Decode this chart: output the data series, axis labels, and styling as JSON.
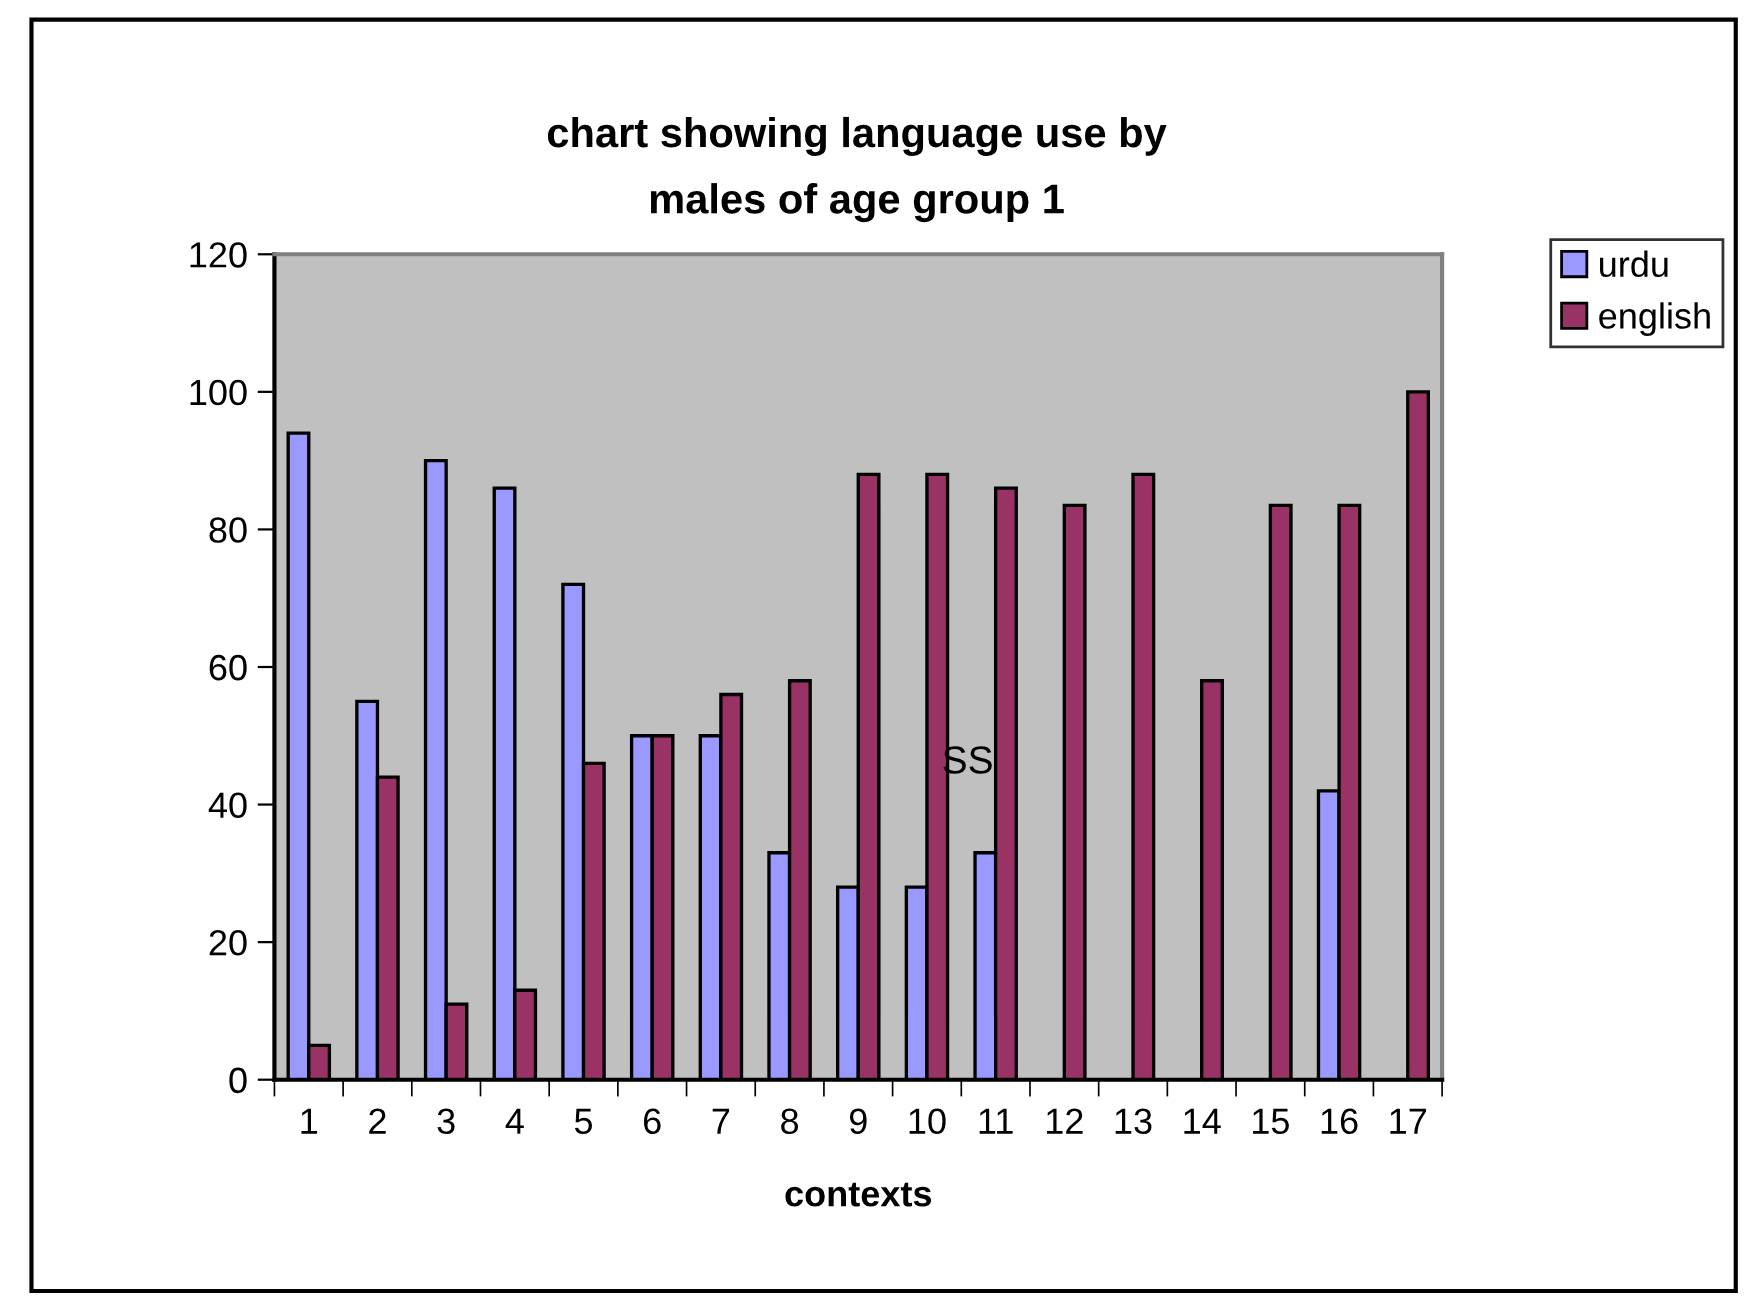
{
  "chart_data": {
    "type": "bar",
    "title": "chart showing language use by\nmales of age group 1",
    "xlabel": "contexts",
    "categories": [
      "1",
      "2",
      "3",
      "4",
      "5",
      "6",
      "7",
      "8",
      "9",
      "10",
      "11",
      "12",
      "13",
      "14",
      "15",
      "16",
      "17"
    ],
    "series": [
      {
        "name": "urdu",
        "color": "#9999ff",
        "values": [
          94,
          55,
          90,
          86,
          72,
          50,
          50,
          33,
          28,
          28,
          33,
          null,
          null,
          null,
          null,
          42,
          null
        ]
      },
      {
        "name": "english",
        "color": "#993366",
        "values": [
          5,
          44,
          11,
          13,
          46,
          50,
          56,
          58,
          88,
          88,
          86,
          83.5,
          88,
          58,
          83.5,
          83.5,
          100
        ]
      }
    ],
    "ylim": [
      0,
      120
    ],
    "yticks": [
      0,
      20,
      40,
      60,
      80,
      100,
      120
    ],
    "grid": false,
    "legend": "top right",
    "annotations": [
      {
        "text": "SS",
        "x": "11",
        "y": 46
      }
    ]
  }
}
